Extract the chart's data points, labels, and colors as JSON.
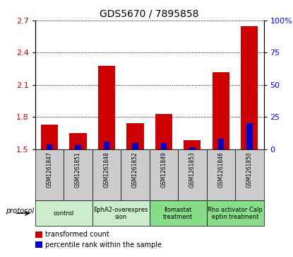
{
  "title": "GDS5670 / 7895858",
  "samples": [
    "GSM1261847",
    "GSM1261851",
    "GSM1261848",
    "GSM1261852",
    "GSM1261849",
    "GSM1261853",
    "GSM1261846",
    "GSM1261850"
  ],
  "red_values": [
    1.73,
    1.65,
    2.28,
    1.74,
    1.83,
    1.58,
    2.22,
    2.65
  ],
  "blue_values": [
    3.5,
    3.0,
    6.0,
    4.5,
    4.5,
    1.5,
    8.0,
    20.0
  ],
  "ylim_left": [
    1.5,
    2.7
  ],
  "ylim_right": [
    0,
    100
  ],
  "yticks_left": [
    1.5,
    1.8,
    2.1,
    2.4,
    2.7
  ],
  "yticks_right": [
    0,
    25,
    50,
    75,
    100
  ],
  "bar_width": 0.6,
  "red_color": "#cc0000",
  "blue_color": "#0000cc",
  "groups": [
    {
      "label": "control",
      "indices": [
        0,
        1
      ],
      "color": "#cceecc"
    },
    {
      "label": "EphA2-overexpres\nsion",
      "indices": [
        2,
        3
      ],
      "color": "#cceecc"
    },
    {
      "label": "Ilomastat\ntreatment",
      "indices": [
        4,
        5
      ],
      "color": "#88dd88"
    },
    {
      "label": "Rho activator Calp\neptin treatment",
      "indices": [
        6,
        7
      ],
      "color": "#88dd88"
    }
  ],
  "protocol_label": "protocol",
  "legend_red": "transformed count",
  "legend_blue": "percentile rank within the sample",
  "sample_box_color": "#cccccc",
  "left_label_color": "#cc0000",
  "right_label_color": "#0000ff"
}
